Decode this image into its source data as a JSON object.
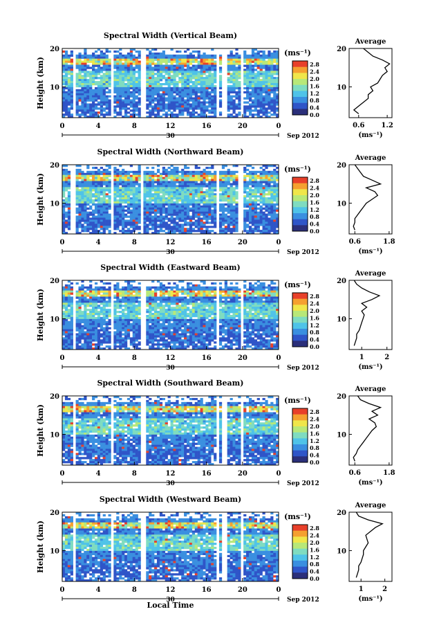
{
  "figure": {
    "xlabel_bottom": "Local Time",
    "month_label": "Sep 2012",
    "date_label": "30",
    "unit_label": "(ms⁻¹)",
    "ylabel": "Height (km)",
    "average_title": "Average",
    "average_xlabel": "(ms⁻¹)",
    "colors": {
      "colormap": [
        "#2b2f7a",
        "#2f55c8",
        "#3a8fe0",
        "#4fc3e8",
        "#7fdcc0",
        "#b8e878",
        "#f0e64a",
        "#f5a030",
        "#e8402a"
      ],
      "trace": "#000000"
    }
  },
  "chart_data": [
    {
      "type": "heatmap",
      "title": "Spectral Width (Vertical Beam)",
      "xlabel": "Local Time",
      "ylabel": "Height (km)",
      "x_ticks": [
        "0",
        "4",
        "8",
        "12",
        "16",
        "20",
        "0"
      ],
      "xlim": [
        0,
        24
      ],
      "ylim": [
        2,
        20
      ],
      "y_ticks": [
        "10",
        "20"
      ],
      "colorbar_ticks": [
        "0.0",
        "0.4",
        "0.8",
        "1.2",
        "1.6",
        "2.0",
        "2.4",
        "2.8"
      ],
      "colorbar_range": [
        0,
        3.0
      ],
      "data_gaps_hours": [
        [
          1.2,
          1.6
        ],
        [
          5.5,
          5.8
        ],
        [
          8.8,
          9.2
        ],
        [
          17.0,
          17.3
        ],
        [
          17.8,
          18.2
        ],
        [
          19.7,
          20.1
        ]
      ],
      "average": {
        "x_ticks": [
          "0.6",
          "1.2"
        ],
        "xlim": [
          0.4,
          1.3
        ],
        "height_km": [
          3,
          4,
          5,
          6,
          7,
          8,
          9,
          10,
          11,
          12,
          13,
          14,
          15,
          16,
          17,
          18,
          19,
          20
        ],
        "width_ms": [
          0.6,
          0.5,
          0.6,
          0.7,
          0.8,
          0.8,
          0.9,
          0.85,
          1.0,
          1.05,
          1.1,
          1.2,
          1.15,
          1.25,
          1.1,
          0.9,
          0.8,
          0.7
        ]
      }
    },
    {
      "type": "heatmap",
      "title": "Spectral Width (Northward Beam)",
      "xlabel": "Local Time",
      "ylabel": "Height (km)",
      "x_ticks": [
        "0",
        "4",
        "8",
        "12",
        "16",
        "20",
        "0"
      ],
      "xlim": [
        0,
        24
      ],
      "ylim": [
        2,
        20
      ],
      "y_ticks": [
        "10",
        "20"
      ],
      "colorbar_ticks": [
        "0.0",
        "0.4",
        "0.8",
        "1.2",
        "1.6",
        "2.0",
        "2.4",
        "2.8"
      ],
      "colorbar_range": [
        0,
        3.0
      ],
      "data_gaps_hours": [
        [
          1.0,
          1.4
        ],
        [
          5.4,
          5.8
        ],
        [
          8.7,
          9.1
        ],
        [
          17.0,
          17.4
        ],
        [
          19.6,
          20.0
        ]
      ],
      "average": {
        "x_ticks": [
          "0.6",
          "1.8"
        ],
        "xlim": [
          0.4,
          1.9
        ],
        "height_km": [
          3,
          4,
          5,
          6,
          7,
          8,
          9,
          10,
          11,
          12,
          13,
          14,
          15,
          16,
          17,
          18,
          19,
          20
        ],
        "width_ms": [
          0.6,
          0.55,
          0.6,
          0.6,
          0.7,
          0.8,
          0.9,
          1.0,
          1.2,
          1.4,
          1.3,
          1.0,
          1.5,
          1.2,
          0.9,
          0.8,
          0.7,
          0.6
        ]
      }
    },
    {
      "type": "heatmap",
      "title": "Spectral Width (Eastward Beam)",
      "xlabel": "Local Time",
      "ylabel": "Height (km)",
      "x_ticks": [
        "0",
        "4",
        "8",
        "12",
        "16",
        "20",
        "0"
      ],
      "xlim": [
        0,
        24
      ],
      "ylim": [
        2,
        20
      ],
      "y_ticks": [
        "10",
        "20"
      ],
      "colorbar_ticks": [
        "0.0",
        "0.4",
        "0.8",
        "1.2",
        "1.6",
        "2.0",
        "2.4",
        "2.8"
      ],
      "colorbar_range": [
        0,
        3.0
      ],
      "data_gaps_hours": [
        [
          1.2,
          1.6
        ],
        [
          5.5,
          5.8
        ],
        [
          8.8,
          9.2
        ],
        [
          17.0,
          17.4
        ],
        [
          19.7,
          20.1
        ]
      ],
      "average": {
        "x_ticks": [
          "1",
          "2"
        ],
        "xlim": [
          0.5,
          2.2
        ],
        "height_km": [
          3,
          4,
          5,
          6,
          7,
          8,
          9,
          10,
          11,
          12,
          13,
          14,
          15,
          16,
          17,
          18,
          19,
          20
        ],
        "width_ms": [
          0.7,
          0.75,
          0.8,
          0.8,
          0.9,
          0.95,
          1.0,
          1.05,
          1.1,
          1.0,
          1.2,
          1.0,
          1.4,
          1.7,
          1.3,
          1.0,
          0.8,
          0.7
        ]
      }
    },
    {
      "type": "heatmap",
      "title": "Spectral Width (Southward Beam)",
      "xlabel": "Local Time",
      "ylabel": "Height (km)",
      "x_ticks": [
        "0",
        "4",
        "8",
        "12",
        "16",
        "20",
        "0"
      ],
      "xlim": [
        0,
        24
      ],
      "ylim": [
        2,
        20
      ],
      "y_ticks": [
        "10",
        "20"
      ],
      "colorbar_ticks": [
        "0.0",
        "0.4",
        "0.8",
        "1.2",
        "1.6",
        "2.0",
        "2.4",
        "2.8"
      ],
      "colorbar_range": [
        0,
        3.0
      ],
      "data_gaps_hours": [
        [
          1.2,
          1.6
        ],
        [
          5.5,
          5.8
        ],
        [
          8.8,
          9.2
        ],
        [
          17.0,
          17.3
        ],
        [
          17.8,
          18.2
        ],
        [
          19.7,
          20.1
        ]
      ],
      "average": {
        "x_ticks": [
          "0.6",
          "1.8"
        ],
        "xlim": [
          0.4,
          1.9
        ],
        "height_km": [
          3,
          4,
          5,
          6,
          7,
          8,
          9,
          10,
          11,
          12,
          13,
          14,
          15,
          16,
          17,
          18,
          19,
          20
        ],
        "width_ms": [
          0.6,
          0.55,
          0.65,
          0.7,
          0.8,
          0.9,
          1.0,
          1.1,
          1.2,
          1.35,
          1.3,
          1.1,
          1.4,
          1.2,
          1.5,
          1.1,
          0.8,
          0.7
        ]
      }
    },
    {
      "type": "heatmap",
      "title": "Spectral Width (Westward Beam)",
      "xlabel": "Local Time",
      "ylabel": "Height (km)",
      "x_ticks": [
        "0",
        "4",
        "8",
        "12",
        "16",
        "20",
        "0"
      ],
      "xlim": [
        0,
        24
      ],
      "ylim": [
        2,
        20
      ],
      "y_ticks": [
        "10",
        "20"
      ],
      "colorbar_ticks": [
        "0.0",
        "0.4",
        "0.8",
        "1.2",
        "1.6",
        "2.0",
        "2.4",
        "2.8"
      ],
      "colorbar_range": [
        0,
        3.0
      ],
      "data_gaps_hours": [
        [
          1.2,
          1.6
        ],
        [
          5.5,
          5.8
        ],
        [
          8.8,
          9.2
        ],
        [
          17.0,
          17.4
        ],
        [
          17.8,
          18.2
        ],
        [
          19.7,
          20.1
        ]
      ],
      "average": {
        "x_ticks": [
          "1",
          "2"
        ],
        "xlim": [
          0.5,
          2.3
        ],
        "height_km": [
          3,
          4,
          5,
          6,
          7,
          8,
          9,
          10,
          11,
          12,
          13,
          14,
          15,
          16,
          17,
          18,
          19,
          20
        ],
        "width_ms": [
          0.8,
          0.85,
          0.9,
          0.9,
          1.0,
          1.05,
          1.1,
          1.1,
          1.2,
          1.3,
          1.25,
          1.2,
          1.4,
          1.6,
          1.9,
          1.3,
          0.9,
          0.8
        ]
      }
    }
  ]
}
